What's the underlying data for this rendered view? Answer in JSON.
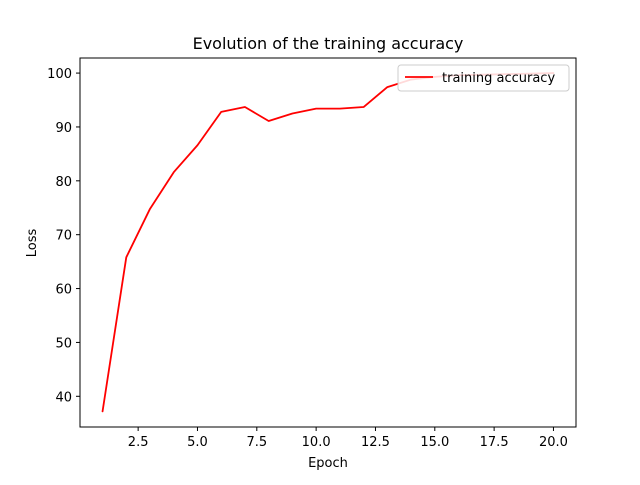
{
  "chart_data": {
    "type": "line",
    "title": "Evolution of the training accuracy",
    "xlabel": "Epoch",
    "ylabel": "Loss",
    "xlim": [
      0.05,
      20.95
    ],
    "ylim": [
      34.3,
      102.8
    ],
    "xticks": [
      2.5,
      5.0,
      7.5,
      10.0,
      12.5,
      15.0,
      17.5,
      20.0
    ],
    "xtick_labels": [
      "2.5",
      "5.0",
      "7.5",
      "10.0",
      "12.5",
      "15.0",
      "17.5",
      "20.0"
    ],
    "yticks": [
      40,
      50,
      60,
      70,
      80,
      90,
      100
    ],
    "ytick_labels": [
      "40",
      "50",
      "60",
      "70",
      "80",
      "90",
      "100"
    ],
    "grid": false,
    "legend_position": "top-right",
    "series": [
      {
        "name": "training accuracy",
        "color": "#ff0000",
        "x": [
          1,
          2,
          3,
          4,
          5,
          6,
          7,
          8,
          9,
          10,
          11,
          12,
          13,
          14,
          15,
          16,
          17,
          18,
          19,
          20
        ],
        "y": [
          37.2,
          65.8,
          74.8,
          81.6,
          86.6,
          92.8,
          93.7,
          91.1,
          92.5,
          93.4,
          93.4,
          93.7,
          97.4,
          98.8,
          99.3,
          99.6,
          99.7,
          99.8,
          99.9,
          100.0
        ]
      }
    ]
  }
}
